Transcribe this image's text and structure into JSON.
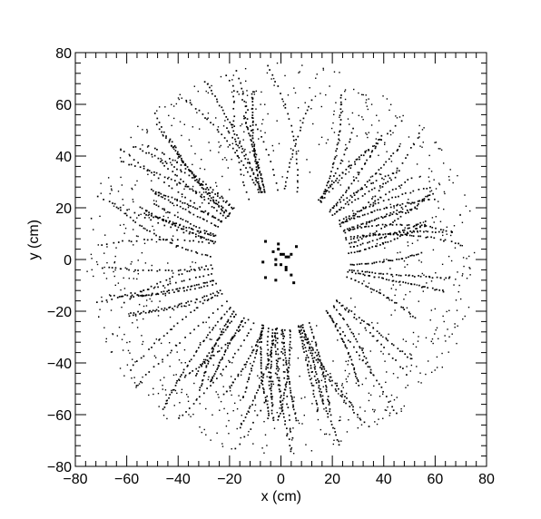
{
  "chart_data": {
    "type": "scatter",
    "title": "",
    "xlabel": "x (cm)",
    "ylabel": "y (cm)",
    "xlim": [
      -80,
      80
    ],
    "ylim": [
      -80,
      80
    ],
    "x_ticks": [
      -80,
      -60,
      -40,
      -20,
      0,
      20,
      40,
      60,
      80
    ],
    "y_ticks": [
      -80,
      -60,
      -40,
      -20,
      0,
      20,
      40,
      60,
      80
    ],
    "minor_ticks_per_major": 5,
    "grid": false,
    "legend": "none",
    "marker_color": "#000000",
    "ring_hits": {
      "inner_radius": 27,
      "outer_radius": 76,
      "track_count": 88
    },
    "center_hits": [
      [
        -6,
        7
      ],
      [
        -1,
        4
      ],
      [
        -3,
        3
      ],
      [
        0,
        2
      ],
      [
        1,
        2
      ],
      [
        -2,
        0
      ],
      [
        2,
        1
      ],
      [
        4,
        2
      ],
      [
        6,
        5
      ],
      [
        -7,
        -1
      ],
      [
        -2,
        -2
      ],
      [
        0,
        -2
      ],
      [
        2,
        -3
      ],
      [
        -6,
        -7
      ],
      [
        2,
        -4
      ],
      [
        4,
        -6
      ],
      [
        5,
        -9
      ],
      [
        -2,
        -8
      ],
      [
        3,
        1
      ],
      [
        -1,
        6
      ]
    ]
  }
}
